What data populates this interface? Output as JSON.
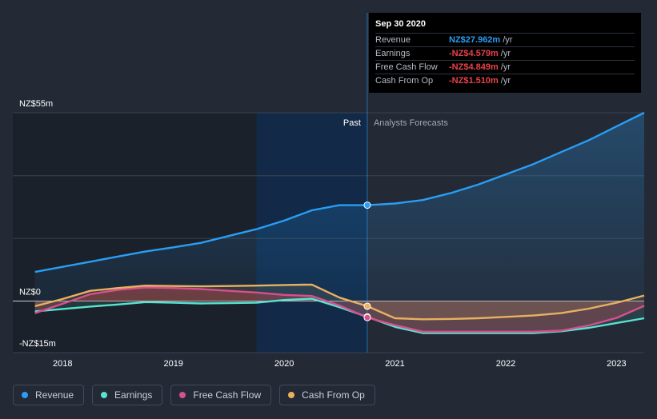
{
  "tooltip": {
    "date": "Sep 30 2020",
    "rows": [
      {
        "label": "Revenue",
        "value": "NZ$27.962m",
        "unit": "/yr",
        "color": "#2a9df4"
      },
      {
        "label": "Earnings",
        "value": "-NZ$4.579m",
        "unit": "/yr",
        "color": "#e8424a"
      },
      {
        "label": "Free Cash Flow",
        "value": "-NZ$4.849m",
        "unit": "/yr",
        "color": "#e8424a"
      },
      {
        "label": "Cash From Op",
        "value": "-NZ$1.510m",
        "unit": "/yr",
        "color": "#e8424a"
      }
    ]
  },
  "legend": [
    {
      "label": "Revenue",
      "color": "#2a9df4"
    },
    {
      "label": "Earnings",
      "color": "#59e3cf"
    },
    {
      "label": "Free Cash Flow",
      "color": "#d6508e"
    },
    {
      "label": "Cash From Op",
      "color": "#e8b160"
    }
  ],
  "chart_data": {
    "type": "line",
    "title": "",
    "currency": "NZ$",
    "y_unit": "m",
    "ylim": [
      -15,
      55
    ],
    "y_ticks": [
      {
        "value": 55,
        "label": "NZ$55m"
      },
      {
        "value": 0,
        "label": "NZ$0"
      },
      {
        "value": -15,
        "label": "-NZ$15m"
      }
    ],
    "gridlines": [
      55,
      36.6,
      18.3,
      0
    ],
    "xlim": [
      2017.55,
      2023.25
    ],
    "x_ticks": [
      2018,
      2019,
      2020,
      2021,
      2022,
      2023
    ],
    "past_label": "Past",
    "forecast_label": "Analysts Forecasts",
    "past_start": 2019.75,
    "divider_x": 2020.75,
    "highlight_date": 2020.75,
    "series": [
      {
        "name": "Revenue",
        "color": "#2a9df4",
        "x": [
          2017.75,
          2018.0,
          2018.25,
          2018.5,
          2018.75,
          2019.0,
          2019.25,
          2019.5,
          2019.75,
          2020.0,
          2020.25,
          2020.5,
          2020.75,
          2021.0,
          2021.25,
          2021.5,
          2021.75,
          2022.0,
          2022.25,
          2022.5,
          2022.75,
          2023.0,
          2023.25
        ],
        "values": [
          8.5,
          10.0,
          11.5,
          13.0,
          14.5,
          15.7,
          17.0,
          19.0,
          21.0,
          23.5,
          26.5,
          28.0,
          28.0,
          28.5,
          29.5,
          31.5,
          34.0,
          37.0,
          40.0,
          43.5,
          47.0,
          51.0,
          55.0
        ]
      },
      {
        "name": "Earnings",
        "color": "#59e3cf",
        "x": [
          2017.75,
          2018.0,
          2018.25,
          2018.5,
          2018.75,
          2019.0,
          2019.25,
          2019.5,
          2019.75,
          2020.0,
          2020.25,
          2020.5,
          2020.75,
          2021.0,
          2021.25,
          2021.5,
          2021.75,
          2022.0,
          2022.25,
          2022.5,
          2022.75,
          2023.0,
          2023.25
        ],
        "values": [
          -3.0,
          -2.3,
          -1.6,
          -1.0,
          -0.3,
          -0.5,
          -0.7,
          -0.6,
          -0.5,
          0.3,
          0.7,
          -1.8,
          -4.6,
          -7.5,
          -9.3,
          -9.3,
          -9.3,
          -9.3,
          -9.3,
          -8.8,
          -7.8,
          -6.4,
          -5.0
        ]
      },
      {
        "name": "Free Cash Flow",
        "color": "#d6508e",
        "x": [
          2017.75,
          2018.0,
          2018.25,
          2018.5,
          2018.75,
          2019.0,
          2019.25,
          2019.5,
          2019.75,
          2020.0,
          2020.25,
          2020.5,
          2020.75,
          2021.0,
          2021.25,
          2021.5,
          2021.75,
          2022.0,
          2022.25,
          2022.5,
          2022.75,
          2023.0,
          2023.25
        ],
        "values": [
          -3.5,
          -0.8,
          2.0,
          3.3,
          4.0,
          3.8,
          3.5,
          3.0,
          2.5,
          1.8,
          1.5,
          -1.3,
          -4.8,
          -7.0,
          -8.9,
          -8.9,
          -8.9,
          -8.9,
          -8.9,
          -8.6,
          -7.1,
          -4.9,
          -1.4
        ]
      },
      {
        "name": "Cash From Op",
        "color": "#e8b160",
        "x": [
          2017.75,
          2018.0,
          2018.25,
          2018.5,
          2018.75,
          2019.0,
          2019.25,
          2019.5,
          2019.75,
          2020.0,
          2020.25,
          2020.5,
          2020.75,
          2021.0,
          2021.25,
          2021.5,
          2021.75,
          2022.0,
          2022.25,
          2022.5,
          2022.75,
          2023.0,
          2023.25
        ],
        "values": [
          -1.5,
          0.6,
          3.0,
          3.8,
          4.5,
          4.4,
          4.3,
          4.4,
          4.5,
          4.7,
          4.8,
          1.0,
          -1.5,
          -5.0,
          -5.3,
          -5.2,
          -5.0,
          -4.6,
          -4.2,
          -3.5,
          -2.2,
          -0.5,
          1.6
        ]
      }
    ]
  }
}
